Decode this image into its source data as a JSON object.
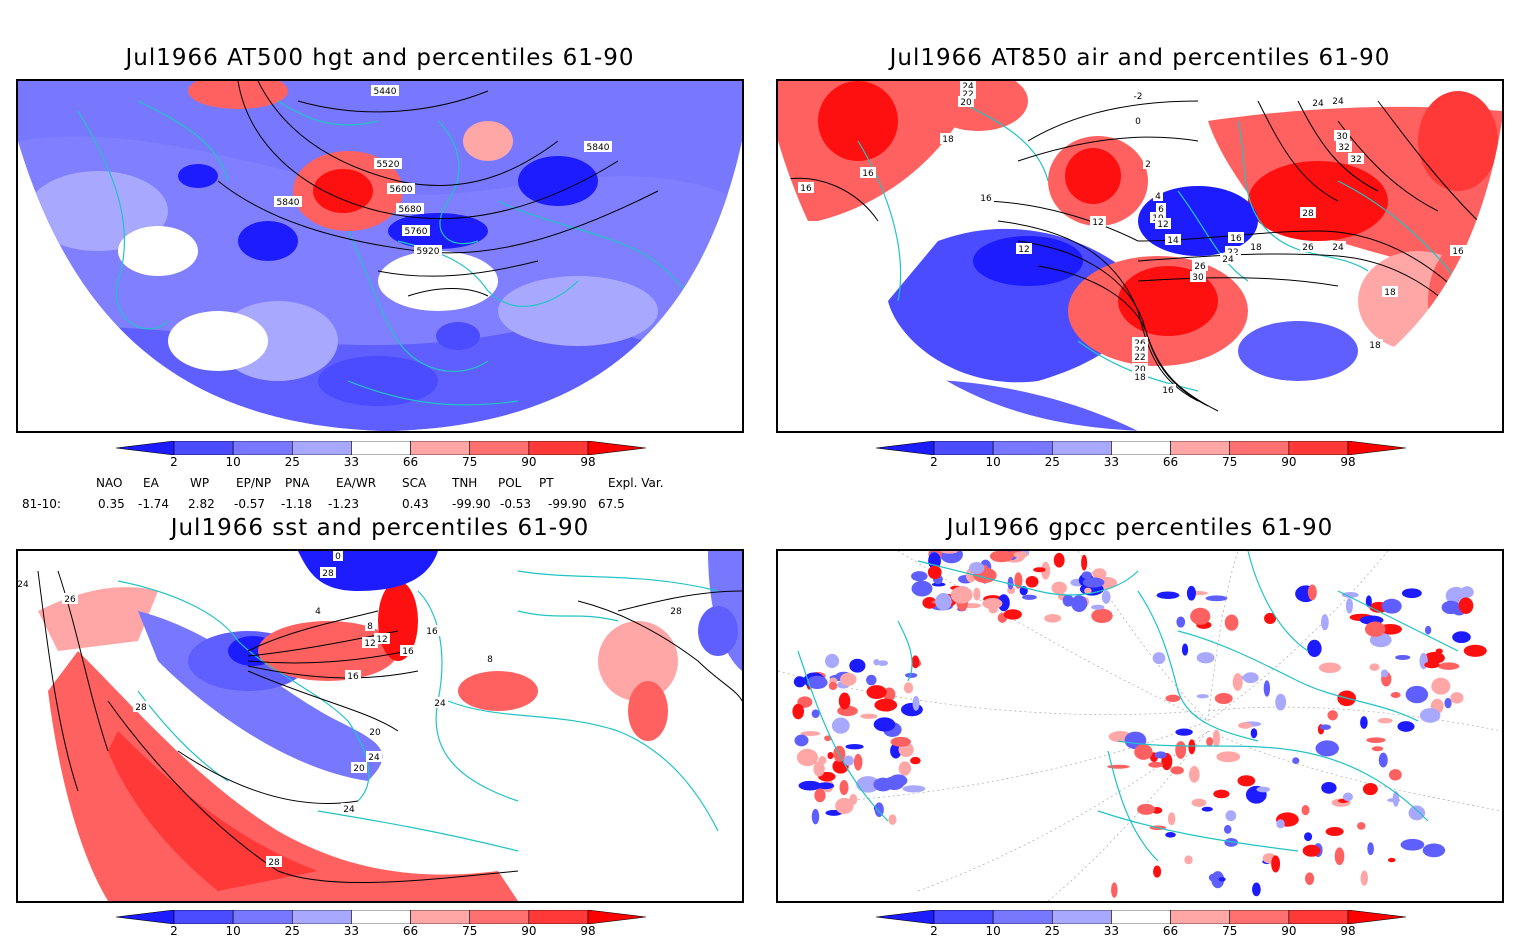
{
  "panels": [
    {
      "id": "hgt",
      "title": "Jul1966 AT500 hgt and percentiles 61-90",
      "contour_labels": [
        "5440",
        "5520",
        "5600",
        "5680",
        "5760",
        "5840",
        "5840",
        "5920"
      ]
    },
    {
      "id": "air",
      "title": "Jul1966 AT850 air and percentiles 61-90",
      "contour_labels": [
        "24",
        "22",
        "20",
        "18",
        "16",
        "16",
        "16",
        "12",
        "12",
        "0",
        "-2",
        "2",
        "4",
        "6",
        "10",
        "12",
        "14",
        "16",
        "18",
        "22",
        "24",
        "26",
        "30",
        "32",
        "24",
        "24",
        "30",
        "32",
        "28",
        "26",
        "24",
        "16",
        "18",
        "18",
        "26",
        "24",
        "22",
        "20",
        "18",
        "16"
      ]
    },
    {
      "id": "sst",
      "title": "Jul1966 sst and percentiles 61-90",
      "contour_labels": [
        "24",
        "26",
        "28",
        "28",
        "28",
        "24",
        "24",
        "16",
        "16",
        "12",
        "8",
        "4",
        "0",
        "20",
        "20",
        "24",
        "28",
        "8",
        "16",
        "12"
      ]
    },
    {
      "id": "gpcc",
      "title": "Jul1966 gpcc percentiles 61-90",
      "contour_labels": []
    }
  ],
  "colorbar": {
    "labels": [
      "2",
      "10",
      "25",
      "33",
      "66",
      "75",
      "90",
      "98"
    ],
    "colors": [
      "#1c1cff",
      "#4b4bff",
      "#7878ff",
      "#a8a8ff",
      "#ffffff",
      "#ffa6a6",
      "#ff7070",
      "#ff3838",
      "#ff0000"
    ]
  },
  "indices": {
    "headers": [
      "NAO",
      "EA",
      "WP",
      "EP/NP",
      "PNA",
      "EA/WR",
      "SCA",
      "TNH",
      "POL",
      "PT",
      "Expl. Var."
    ],
    "row_label": "81-10:",
    "values": [
      "0.35",
      "-1.74",
      "2.82",
      "-0.57",
      "-1.18",
      "-1.23",
      "0.43",
      "-99.90",
      "-0.53",
      "-99.90",
      "67.5"
    ]
  },
  "colors": {
    "coast": "#22c3c3",
    "contour": "#000000",
    "blue_mid": "#5f5fff",
    "blue_light": "#a8a8ff",
    "blue_dark": "#1c1cff",
    "red_light": "#ffa6a6",
    "red_mid": "#ff6060",
    "red_dark": "#ff1010"
  }
}
